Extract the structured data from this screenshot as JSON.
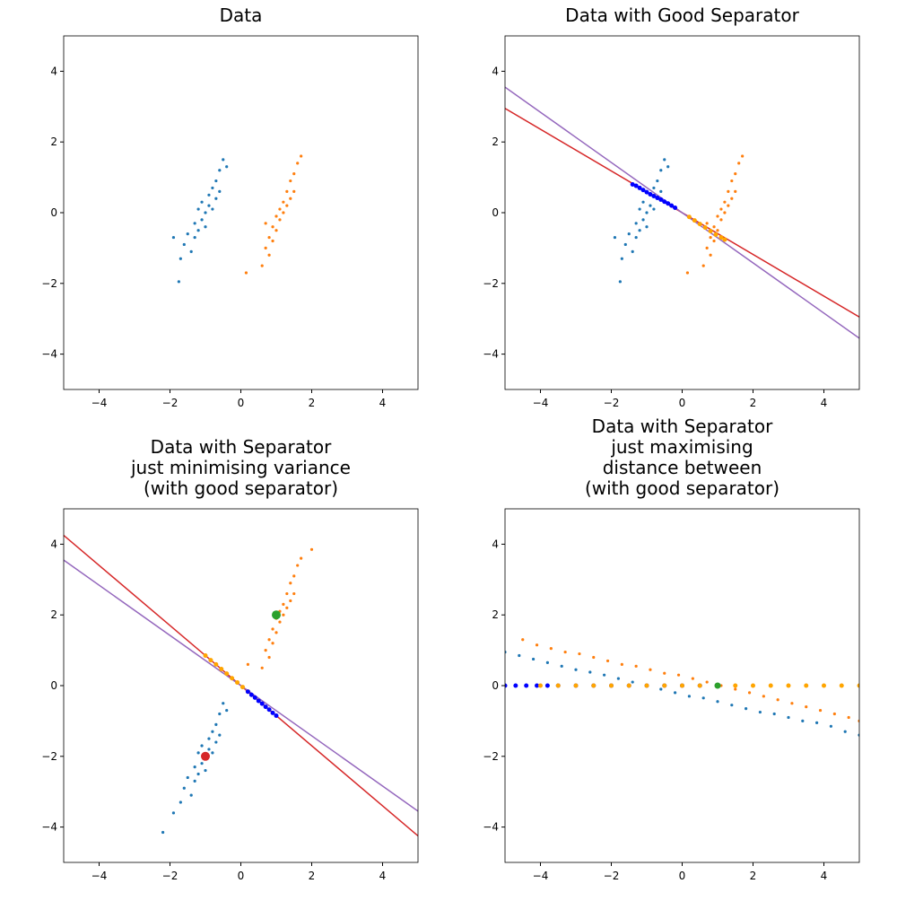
{
  "chart_data": [
    {
      "type": "scatter",
      "title": [
        "Data"
      ],
      "xlim": [
        -5,
        5
      ],
      "ylim": [
        -5,
        5
      ],
      "xticks": [
        {
          "value": -4,
          "label": "−4"
        },
        {
          "value": -2,
          "label": "−2"
        },
        0,
        2,
        4
      ],
      "yticks": [
        {
          "value": -4,
          "label": "−4"
        },
        {
          "value": -2,
          "label": "−2"
        },
        0,
        2,
        4
      ],
      "lines": [],
      "series": [
        {
          "color": "#1f77b4",
          "size": 1.6,
          "x": [
            -1.7,
            -1.6,
            -1.5,
            -1.4,
            -1.3,
            -1.3,
            -1.2,
            -1.2,
            -1.1,
            -1.1,
            -1.0,
            -1.0,
            -0.9,
            -0.9,
            -0.8,
            -0.8,
            -0.7,
            -0.7,
            -0.6,
            -0.6,
            -0.5,
            -1.75,
            -0.4,
            -1.9
          ],
          "y": [
            -1.3,
            -0.9,
            -0.6,
            -1.1,
            -0.3,
            -0.7,
            0.1,
            -0.5,
            -0.2,
            0.3,
            0.0,
            -0.4,
            0.5,
            0.2,
            0.7,
            0.1,
            0.9,
            0.4,
            1.2,
            0.6,
            1.5,
            -1.95,
            1.3,
            -0.7
          ]
        },
        {
          "color": "#ff7f0e",
          "size": 1.6,
          "x": [
            0.6,
            0.7,
            0.8,
            0.8,
            0.9,
            0.9,
            1.0,
            1.0,
            1.1,
            1.1,
            1.2,
            1.2,
            1.3,
            1.3,
            1.4,
            1.4,
            1.5,
            1.6,
            1.7,
            0.15,
            0.7,
            1.5
          ],
          "y": [
            -1.5,
            -1.0,
            -0.7,
            -1.2,
            -0.4,
            -0.8,
            -0.1,
            -0.5,
            0.1,
            -0.2,
            0.3,
            0.0,
            0.6,
            0.2,
            0.9,
            0.4,
            1.1,
            1.4,
            1.6,
            -1.7,
            -0.3,
            0.6
          ]
        }
      ]
    },
    {
      "type": "scatter",
      "title": [
        "Data with Good Separator"
      ],
      "xlim": [
        -5,
        5
      ],
      "ylim": [
        -5,
        5
      ],
      "xticks": [
        {
          "value": -4,
          "label": "−4"
        },
        {
          "value": -2,
          "label": "−2"
        },
        0,
        2,
        4
      ],
      "yticks": [
        {
          "value": -4,
          "label": "−4"
        },
        {
          "value": -2,
          "label": "−2"
        },
        0,
        2,
        4
      ],
      "lines": [
        {
          "color": "#d62728",
          "x": [
            -5,
            5
          ],
          "y": [
            2.95,
            -2.95
          ]
        },
        {
          "color": "#9467bd",
          "x": [
            -5,
            5
          ],
          "y": [
            3.55,
            -3.55
          ]
        }
      ],
      "series": [
        {
          "color": "#1f77b4",
          "size": 1.6,
          "x": [
            -1.7,
            -1.6,
            -1.5,
            -1.4,
            -1.3,
            -1.3,
            -1.2,
            -1.2,
            -1.1,
            -1.1,
            -1.0,
            -1.0,
            -0.9,
            -0.9,
            -0.8,
            -0.8,
            -0.7,
            -0.7,
            -0.6,
            -0.6,
            -0.5,
            -1.75,
            -0.4,
            -1.9
          ],
          "y": [
            -1.3,
            -0.9,
            -0.6,
            -1.1,
            -0.3,
            -0.7,
            0.1,
            -0.5,
            -0.2,
            0.3,
            0.0,
            -0.4,
            0.5,
            0.2,
            0.7,
            0.1,
            0.9,
            0.4,
            1.2,
            0.6,
            1.5,
            -1.95,
            1.3,
            -0.7
          ]
        },
        {
          "color": "#ff7f0e",
          "size": 1.6,
          "x": [
            0.6,
            0.7,
            0.8,
            0.8,
            0.9,
            0.9,
            1.0,
            1.0,
            1.1,
            1.1,
            1.2,
            1.2,
            1.3,
            1.3,
            1.4,
            1.4,
            1.5,
            1.6,
            1.7,
            0.15,
            0.7,
            1.5
          ],
          "y": [
            -1.5,
            -1.0,
            -0.7,
            -1.2,
            -0.4,
            -0.8,
            -0.1,
            -0.5,
            0.1,
            -0.2,
            0.3,
            0.0,
            0.6,
            0.2,
            0.9,
            0.4,
            1.1,
            1.4,
            1.6,
            -1.7,
            -0.3,
            0.6
          ]
        },
        {
          "color": "#0000ff",
          "size": 2.5,
          "x": [
            -1.4,
            -1.3,
            -1.2,
            -1.1,
            -1.0,
            -0.9,
            -0.8,
            -0.7,
            -0.6,
            -0.5,
            -0.4,
            -0.3,
            -0.2
          ],
          "y": [
            0.8,
            0.76,
            0.7,
            0.64,
            0.58,
            0.52,
            0.47,
            0.42,
            0.37,
            0.31,
            0.26,
            0.2,
            0.14
          ]
        },
        {
          "color": "#ffa500",
          "size": 2.5,
          "x": [
            0.2,
            0.35,
            0.5,
            0.65,
            0.8,
            0.95,
            1.1,
            1.2
          ],
          "y": [
            -0.12,
            -0.22,
            -0.32,
            -0.42,
            -0.52,
            -0.62,
            -0.7,
            -0.76
          ]
        }
      ]
    },
    {
      "type": "scatter",
      "title": [
        "Data with Separator",
        "just minimising variance",
        "(with good separator)"
      ],
      "xlim": [
        -5,
        5
      ],
      "ylim": [
        -5,
        5
      ],
      "xticks": [
        {
          "value": -4,
          "label": "−4"
        },
        {
          "value": -2,
          "label": "−2"
        },
        0,
        2,
        4
      ],
      "yticks": [
        {
          "value": -4,
          "label": "−4"
        },
        {
          "value": -2,
          "label": "−2"
        },
        0,
        2,
        4
      ],
      "lines": [
        {
          "color": "#d62728",
          "x": [
            -5,
            5
          ],
          "y": [
            4.25,
            -4.25
          ]
        },
        {
          "color": "#9467bd",
          "x": [
            -5,
            5
          ],
          "y": [
            3.55,
            -3.55
          ]
        }
      ],
      "series": [
        {
          "color": "#1f77b4",
          "size": 1.6,
          "x": [
            -1.7,
            -1.6,
            -1.5,
            -1.4,
            -1.3,
            -1.3,
            -1.2,
            -1.2,
            -1.1,
            -1.1,
            -1.0,
            -1.0,
            -0.9,
            -0.9,
            -0.8,
            -0.8,
            -0.7,
            -0.7,
            -0.6,
            -0.6,
            -0.5,
            -2.2,
            -0.4,
            -1.9
          ],
          "y": [
            -3.3,
            -2.9,
            -2.6,
            -3.1,
            -2.3,
            -2.7,
            -1.9,
            -2.5,
            -2.2,
            -1.7,
            -2.0,
            -2.4,
            -1.5,
            -1.8,
            -1.3,
            -1.9,
            -1.1,
            -1.6,
            -0.8,
            -1.4,
            -0.5,
            -4.15,
            -0.7,
            -3.6
          ]
        },
        {
          "color": "#ff7f0e",
          "size": 1.6,
          "x": [
            0.6,
            0.7,
            0.8,
            0.8,
            0.9,
            0.9,
            1.0,
            1.0,
            1.1,
            1.1,
            1.2,
            1.2,
            1.3,
            1.3,
            1.4,
            1.4,
            1.5,
            1.6,
            1.7,
            2.0,
            0.2,
            1.5
          ],
          "y": [
            0.5,
            1.0,
            1.3,
            0.8,
            1.6,
            1.2,
            1.9,
            1.5,
            2.1,
            1.8,
            2.3,
            2.0,
            2.6,
            2.2,
            2.9,
            2.4,
            3.1,
            3.4,
            3.6,
            3.85,
            0.6,
            2.6
          ]
        },
        {
          "color": "#ffa500",
          "size": 2.5,
          "x": [
            -1.0,
            -0.85,
            -0.7,
            -0.55,
            -0.4,
            -0.25,
            -0.1,
            0.05,
            0.2
          ],
          "y": [
            0.85,
            0.72,
            0.6,
            0.47,
            0.34,
            0.21,
            0.09,
            -0.04,
            -0.17
          ]
        },
        {
          "color": "#0000ff",
          "size": 2.5,
          "x": [
            0.2,
            0.3,
            0.4,
            0.5,
            0.6,
            0.7,
            0.8,
            0.9,
            1.0
          ],
          "y": [
            -0.17,
            -0.26,
            -0.34,
            -0.43,
            -0.51,
            -0.6,
            -0.68,
            -0.77,
            -0.85
          ]
        },
        {
          "color": "#d62728",
          "size": 5,
          "x": [
            -1
          ],
          "y": [
            -2
          ]
        },
        {
          "color": "#2ca02c",
          "size": 5,
          "x": [
            1
          ],
          "y": [
            2
          ]
        }
      ]
    },
    {
      "type": "scatter",
      "title": [
        "Data with Separator",
        "just maximising",
        "distance between",
        "(with good separator)"
      ],
      "xlim": [
        -5,
        5
      ],
      "ylim": [
        -5,
        5
      ],
      "xticks": [
        {
          "value": -4,
          "label": "−4"
        },
        {
          "value": -2,
          "label": "−2"
        },
        0,
        2,
        4
      ],
      "yticks": [
        {
          "value": -4,
          "label": "−4"
        },
        {
          "value": -2,
          "label": "−2"
        },
        0,
        2,
        4
      ],
      "lines": [],
      "series": [
        {
          "color": "#1f77b4",
          "size": 1.6,
          "x": [
            -5.0,
            -4.6,
            -4.2,
            -3.8,
            -3.4,
            -3.0,
            -2.6,
            -2.2,
            -1.8,
            -1.4,
            -1.0,
            -0.6,
            -0.2,
            0.2,
            0.6,
            1.0,
            1.4,
            1.8,
            2.2,
            2.6,
            3.0,
            3.4,
            3.8,
            4.2,
            4.6,
            5.0
          ],
          "y": [
            0.95,
            0.85,
            0.75,
            0.65,
            0.55,
            0.45,
            0.38,
            0.3,
            0.2,
            0.1,
            0.0,
            -0.1,
            -0.2,
            -0.3,
            -0.35,
            -0.45,
            -0.55,
            -0.65,
            -0.75,
            -0.8,
            -0.9,
            -1.0,
            -1.05,
            -1.15,
            -1.3,
            -1.4
          ]
        },
        {
          "color": "#ff7f0e",
          "size": 1.6,
          "x": [
            -4.5,
            -4.1,
            -3.7,
            -3.3,
            -2.9,
            -2.5,
            -2.1,
            -1.7,
            -1.3,
            -0.9,
            -0.5,
            -0.1,
            0.3,
            0.7,
            1.1,
            1.5,
            1.9,
            2.3,
            2.7,
            3.1,
            3.5,
            3.9,
            4.3,
            4.7,
            5.0
          ],
          "y": [
            1.3,
            1.15,
            1.05,
            0.95,
            0.9,
            0.8,
            0.7,
            0.6,
            0.55,
            0.45,
            0.35,
            0.3,
            0.2,
            0.1,
            0.0,
            -0.1,
            -0.2,
            -0.3,
            -0.4,
            -0.5,
            -0.6,
            -0.7,
            -0.8,
            -0.9,
            -1.0
          ]
        },
        {
          "color": "#0000ff",
          "size": 2.5,
          "x": [
            -5.0,
            -4.7,
            -4.4,
            -4.1,
            -3.8,
            -3.5,
            -3.0,
            -2.5,
            -2.0,
            -1.5,
            -1.0,
            -0.5,
            0.0,
            0.5,
            1.0
          ],
          "y": [
            0,
            0,
            0,
            0,
            0,
            0,
            0,
            0,
            0,
            0,
            0,
            0,
            0,
            0,
            0
          ]
        },
        {
          "color": "#ffa500",
          "size": 2.5,
          "x": [
            -4.0,
            -3.5,
            -3.0,
            -2.5,
            -2.0,
            -1.5,
            -1.0,
            -0.5,
            0.0,
            0.5,
            1.0,
            1.5,
            2.0,
            2.5,
            3.0,
            3.5,
            4.0,
            4.5,
            5.0
          ],
          "y": [
            0,
            0,
            0,
            0,
            0,
            0,
            0,
            0,
            0,
            0,
            0,
            0,
            0,
            0,
            0,
            0,
            0,
            0,
            0
          ]
        },
        {
          "color": "#2ca02c",
          "size": 3.5,
          "x": [
            1
          ],
          "y": [
            0
          ]
        }
      ]
    }
  ]
}
